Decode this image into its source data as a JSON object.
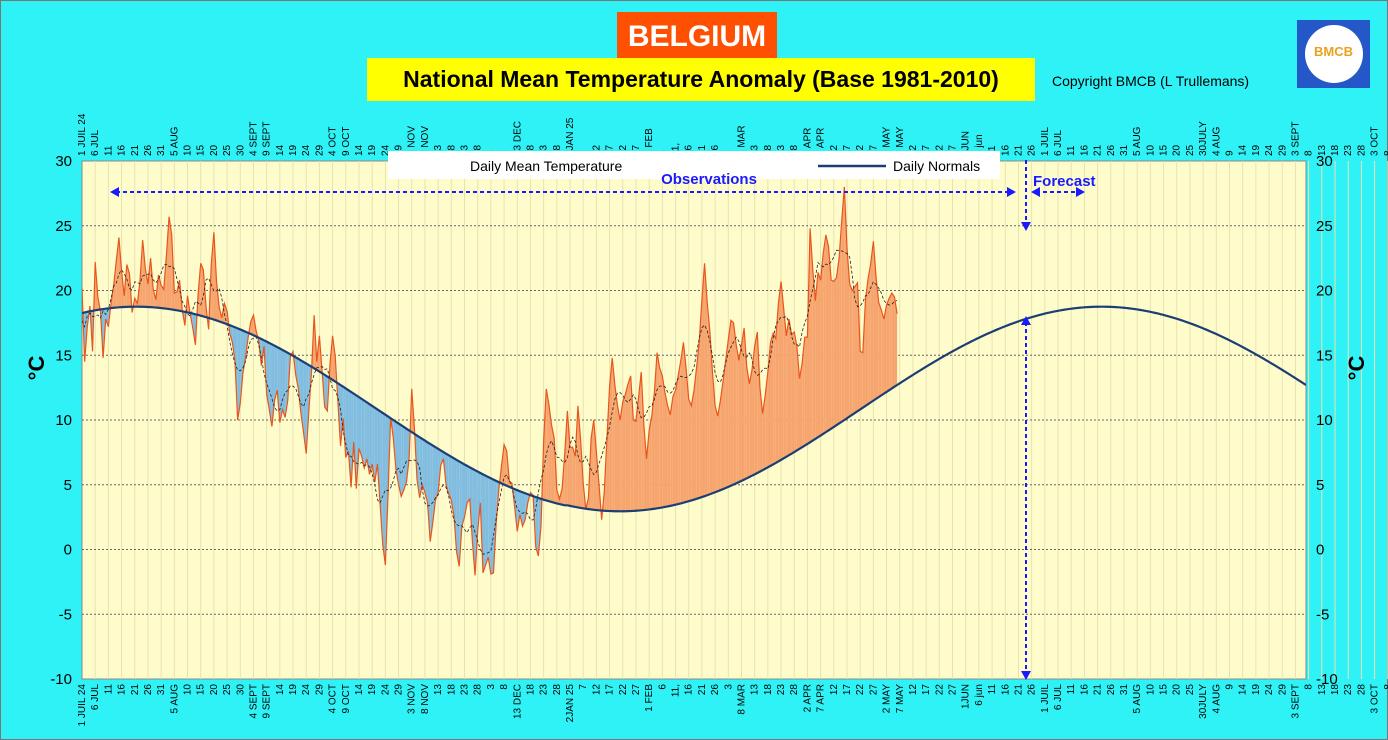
{
  "header": {
    "country": "BELGIUM",
    "title": "National Mean Temperature Anomaly (Base 1981-2010)",
    "copyright": "Copyright BMCB (L Trullemans)",
    "logo_text": "BMCB"
  },
  "colors": {
    "background": "#2ef2f6",
    "plot_area": "#fffccc",
    "above_normal": "#f7a56f",
    "above_normal_line": "#e8561c",
    "below_normal": "#80bde0",
    "normals_line": "#1b3f73",
    "annotation": "#1a1aff"
  },
  "annotations": {
    "observations": "Observations",
    "forecast": "Forecast"
  },
  "chart_data": {
    "type": "area",
    "title": "National Mean Temperature Anomaly (Base 1981-2010)",
    "ylabel": "°C",
    "ylabel_right": "°C",
    "ylim": [
      -10,
      30
    ],
    "yticks": [
      -10,
      -5,
      0,
      5,
      10,
      15,
      20,
      25,
      30
    ],
    "grid": true,
    "legend_position": "top-center",
    "legend": [
      "Daily Mean Temperature",
      "Daily Normals"
    ],
    "x_start": "2024-07-01",
    "x_end": "2025-10-08",
    "observed_end": "2025-07-21",
    "forecast_end": "2025-08-01",
    "tick_labels": [
      "1 JUIL 24",
      "6 JUL",
      "11",
      "16",
      "21",
      "26",
      "31",
      "5 AUG",
      "10",
      "15",
      "20",
      "25",
      "30",
      "4 SEPT",
      "9 SEPT",
      "14",
      "19",
      "24",
      "29",
      "4 OCT",
      "9 OCT",
      "14",
      "19",
      "24",
      "29",
      "3 NOV",
      "8 NOV",
      "13",
      "18",
      "23",
      "28",
      "3",
      "8",
      "13 DEC",
      "18",
      "23",
      "28",
      "2JAN 25",
      "7",
      "12",
      "17",
      "22",
      "27",
      "1 FEB",
      "6",
      "11,",
      "16",
      "21",
      "26",
      "3",
      "8 MAR",
      "13",
      "18",
      "23",
      "28",
      "2 APR",
      "7 APR",
      "12",
      "17",
      "22",
      "27",
      "2 MAY",
      "7 MAY",
      "12",
      "17",
      "22",
      "27",
      "1JUN",
      "6 jun",
      "11",
      "16",
      "21",
      "26",
      "1 JUIL",
      "6 JUL",
      "11",
      "16",
      "21",
      "26",
      "31",
      "5 AUG",
      "10",
      "15",
      "20",
      "25",
      "30JULY",
      "4 AUG",
      "9",
      "14",
      "19",
      "24",
      "29",
      "3 SEPT",
      "8",
      "13",
      "18",
      "23",
      "28",
      "3 OCT",
      "8"
    ],
    "series": [
      {
        "name": "Daily Mean Temperature",
        "values": [
          20.2,
          14.5,
          17.2,
          18.8,
          15.3,
          22.2,
          19.5,
          18.4,
          14.8,
          17.8,
          17.2,
          19.0,
          20.4,
          22.3,
          24.1,
          21.5,
          19.6,
          22.0,
          21.3,
          18.3,
          19.4,
          19.0,
          20.8,
          23.9,
          21.7,
          20.5,
          22.5,
          20.1,
          19.3,
          21.2,
          20.4,
          20.1,
          22.7,
          25.7,
          24.3,
          19.8,
          19.9,
          20.8,
          18.5,
          17.3,
          19.6,
          18.2,
          17.1,
          15.8,
          19.7,
          22.1,
          21.6,
          18.8,
          17.0,
          22.0,
          24.5,
          20.7,
          18.7,
          17.9,
          19.0,
          18.4,
          16.7,
          16.0,
          14.5,
          10.0,
          11.3,
          13.6,
          14.8,
          16.4,
          17.6,
          18.1,
          16.9,
          16.1,
          14.2,
          15.7,
          12.0,
          10.8,
          9.5,
          11.5,
          12.3,
          9.8,
          10.8,
          10.2,
          11.5,
          14.9,
          15.3,
          13.5,
          12.4,
          10.5,
          9.0,
          7.4,
          10.7,
          13.7,
          18.1,
          14.5,
          16.5,
          13.8,
          11.0,
          10.7,
          14.3,
          16.5,
          14.9,
          11.4,
          8.0,
          10.1,
          7.1,
          7.6,
          4.8,
          8.3,
          4.7,
          7.8,
          7.2,
          6.3,
          7.0,
          5.8,
          6.6,
          5.2,
          6.6,
          3.5,
          0.4,
          -1.2,
          4.1,
          10.2,
          8.6,
          6.2,
          5.0,
          4.1,
          4.6,
          5.2,
          7.0,
          12.4,
          9.4,
          5.4,
          4.0,
          5.0,
          4.4,
          3.6,
          0.6,
          2.1,
          3.8,
          4.4,
          6.5,
          7.0,
          5.0,
          4.3,
          3.8,
          2.6,
          -0.2,
          -1.3,
          1.8,
          2.5,
          3.6,
          3.9,
          0.6,
          -2.0,
          1.4,
          3.6,
          -1.8,
          -1.2,
          -0.6,
          -1.9,
          -1.8,
          2.0,
          4.6,
          6.4,
          8.1,
          7.6,
          5.3,
          5.1,
          3.3,
          1.4,
          2.7,
          1.8,
          2.3,
          3.6,
          4.4,
          4.2,
          0.2,
          -0.5,
          1.8,
          8.4,
          12.4,
          11.2,
          9.6,
          8.6,
          4.6,
          3.9,
          4.7,
          7.4,
          10.7,
          7.9,
          7.9,
          7.2,
          11.1,
          8.5,
          5.1,
          3.1,
          4.0,
          8.6,
          10.0,
          7.5,
          5.0,
          2.3,
          4.5,
          8.6,
          12.6,
          14.8,
          12.7,
          11.1,
          10.0,
          11.4,
          12.0,
          12.8,
          13.4,
          10.0,
          9.9,
          11.8,
          13.7,
          9.6,
          7.0,
          9.2,
          10.3,
          12.2,
          15.2,
          14.0,
          13.4,
          12.1,
          11.1,
          10.4,
          11.8,
          12.3,
          13.4,
          14.6,
          16.0,
          14.0,
          11.6,
          11.1,
          12.3,
          14.1,
          16.1,
          19.3,
          22.1,
          19.1,
          16.9,
          13.7,
          11.1,
          10.3,
          11.5,
          13.0,
          14.6,
          16.2,
          17.7,
          17.5,
          15.8,
          14.6,
          15.8,
          17.1,
          14.1,
          12.8,
          13.9,
          15.7,
          16.8,
          12.5,
          10.5,
          11.9,
          13.7,
          16.0,
          16.7,
          16.3,
          19.0,
          20.7,
          18.6,
          16.5,
          17.8,
          16.6,
          16.8,
          15.7,
          13.2,
          14.4,
          16.4,
          16.4,
          24.8,
          21.7,
          19.2,
          21.4,
          20.8,
          22.9,
          24.3,
          23.4,
          20.8,
          20.7,
          21.0,
          22.5,
          25.4,
          28.0,
          23.3,
          20.5,
          20.0,
          20.3,
          20.6,
          15.3,
          15.2,
          19.3,
          20.9,
          22.1,
          23.8,
          21.1,
          19.1,
          18.5,
          17.8,
          18.9,
          19.4,
          19.8,
          19.5,
          18.2
        ]
      },
      {
        "name": "Daily Normals",
        "formula": "10.85 - 7.9*cos(2*pi*(doy-21)/365)",
        "first": 17.8,
        "max": 18.75,
        "min": 2.95,
        "last": 12.9
      }
    ]
  }
}
